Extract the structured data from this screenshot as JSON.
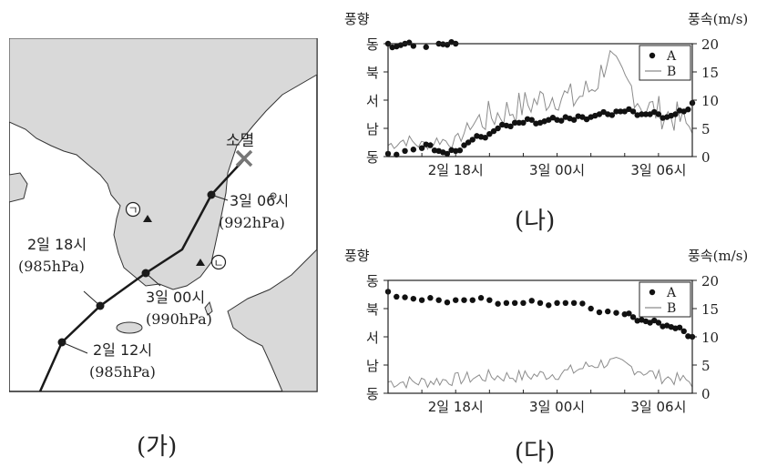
{
  "map": {
    "end_label": "소멸",
    "points": [
      {
        "time": "2일 12시",
        "pressure": "(985hPa)"
      },
      {
        "time": "2일 18시",
        "pressure": "(985hPa)"
      },
      {
        "time": "3일 00시",
        "pressure": "(990hPa)"
      },
      {
        "time": "3일 06시",
        "pressure": "(992hPa)"
      }
    ],
    "station_a": "ㄱ",
    "station_b": "ㄴ"
  },
  "captions": {
    "ga": "(가)",
    "na": "(나)",
    "da": "(다)"
  },
  "colors": {
    "track": "#1a1a1a",
    "land": "#d9d9d9",
    "sea": "#ffffff",
    "series_b": "#8c8c8c",
    "end_mark": "#777777"
  },
  "chart_data": [
    {
      "type": "scatter",
      "left_axis_label": "풍향",
      "right_axis_label": "풍속(m/s)",
      "left_ticks": [
        "동",
        "북",
        "서",
        "남",
        "동"
      ],
      "right_ticks": [
        "20",
        "15",
        "10",
        "5",
        "0"
      ],
      "x_ticks": [
        "2일 18시",
        "3일 00시",
        "3일 06시"
      ],
      "xlim_hours": [
        14,
        32
      ],
      "ylim": [
        0,
        20
      ],
      "legend": [
        "A",
        "B"
      ],
      "legend_position": "top-right",
      "series": [
        {
          "name": "A",
          "style": "dots",
          "x": [
            14,
            14.5,
            15,
            15.5,
            17,
            17.5,
            18
          ],
          "y": [
            20,
            19.5,
            20,
            19.6,
            20,
            19.8,
            20
          ]
        },
        {
          "name": "A",
          "style": "dots",
          "x": [
            14,
            15,
            16,
            16.5,
            17,
            17.5,
            18,
            18.5,
            19,
            19.5,
            20,
            20.5,
            21,
            21.5,
            22,
            22.5,
            23,
            23.5,
            24,
            24.5,
            25,
            25.5,
            26,
            26.5,
            27,
            27.5,
            28,
            28.5,
            29,
            29.5,
            30,
            30.5,
            31,
            31.5,
            32
          ],
          "y": [
            0.5,
            1,
            1.5,
            2,
            1,
            0.5,
            1,
            2,
            3,
            3.5,
            4,
            5,
            5.5,
            6,
            6,
            6.5,
            6,
            6.5,
            6.5,
            7,
            6.5,
            7,
            7,
            7.5,
            7.5,
            8,
            8,
            8,
            7.5,
            7.5,
            7.5,
            7,
            7.5,
            8,
            9.5
          ]
        },
        {
          "name": "B",
          "style": "line",
          "x": [
            14,
            15,
            16,
            17,
            18,
            19,
            20,
            21,
            22,
            23,
            24,
            25,
            26,
            26.5,
            27,
            27.5,
            28,
            28.5,
            29,
            30,
            31,
            32
          ],
          "y": [
            2,
            3,
            2,
            3,
            2.5,
            6,
            7,
            8,
            9,
            10,
            11,
            10,
            12,
            14,
            18,
            15,
            13,
            12,
            9,
            8,
            7,
            5
          ]
        }
      ]
    },
    {
      "type": "scatter",
      "left_axis_label": "풍향",
      "right_axis_label": "풍속(m/s)",
      "left_ticks": [
        "동",
        "북",
        "서",
        "남",
        "동"
      ],
      "right_ticks": [
        "20",
        "15",
        "10",
        "5",
        "0"
      ],
      "x_ticks": [
        "2일 18시",
        "3일 00시",
        "3일 06시"
      ],
      "xlim_hours": [
        14,
        32
      ],
      "ylim": [
        0,
        20
      ],
      "legend": [
        "A",
        "B"
      ],
      "legend_position": "top-right",
      "series": [
        {
          "name": "A",
          "style": "dots",
          "x": [
            14,
            15,
            16,
            17,
            18,
            19,
            20,
            21,
            22,
            23,
            24,
            25,
            26,
            27,
            28,
            28.5,
            29,
            29.5,
            30,
            30.5,
            31,
            31.5,
            32
          ],
          "y": [
            18,
            17,
            16.5,
            16.5,
            16.5,
            16.5,
            16.5,
            16,
            16,
            16,
            16,
            16,
            15,
            14.5,
            14,
            13.5,
            13,
            12.5,
            12.5,
            12,
            11.5,
            11,
            10
          ]
        },
        {
          "name": "B",
          "style": "line",
          "x": [
            14,
            16,
            18,
            20,
            22,
            24,
            25,
            26,
            27,
            28,
            29,
            30,
            31,
            32
          ],
          "y": [
            2,
            2,
            2.5,
            3,
            3,
            3.5,
            4,
            5,
            5.5,
            5,
            4,
            3,
            2.5,
            2
          ]
        }
      ]
    }
  ]
}
